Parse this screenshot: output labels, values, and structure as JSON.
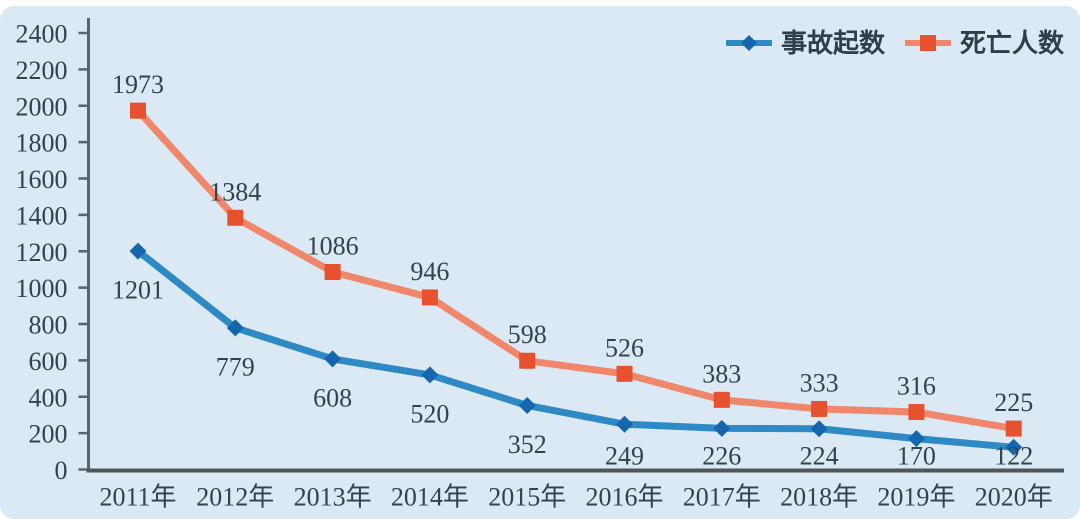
{
  "chart_data": {
    "type": "line",
    "categories": [
      "2011年",
      "2012年",
      "2013年",
      "2014年",
      "2015年",
      "2016年",
      "2017年",
      "2018年",
      "2019年",
      "2020年"
    ],
    "series": [
      {
        "name": "事故起数",
        "values": [
          1201,
          779,
          608,
          520,
          352,
          249,
          226,
          224,
          170,
          122
        ],
        "marker": "diamond",
        "label_position": "below",
        "line_color": "#2e8ac5",
        "marker_color": "#1467ad"
      },
      {
        "name": "死亡人数",
        "values": [
          1973,
          1384,
          1086,
          946,
          598,
          526,
          383,
          333,
          316,
          225
        ],
        "marker": "square",
        "label_position": "above",
        "line_color": "#f0876b",
        "marker_color": "#e7512d"
      }
    ],
    "title": "",
    "xlabel": "",
    "ylabel": "",
    "ylim": [
      0,
      2400
    ],
    "ytick_step": 200,
    "grid": false,
    "legend_position": "top-right",
    "colors": {
      "background": "#dae9f3",
      "text": "#33424f",
      "axis": "#5a646d",
      "x_axis": "#4d565e"
    }
  }
}
